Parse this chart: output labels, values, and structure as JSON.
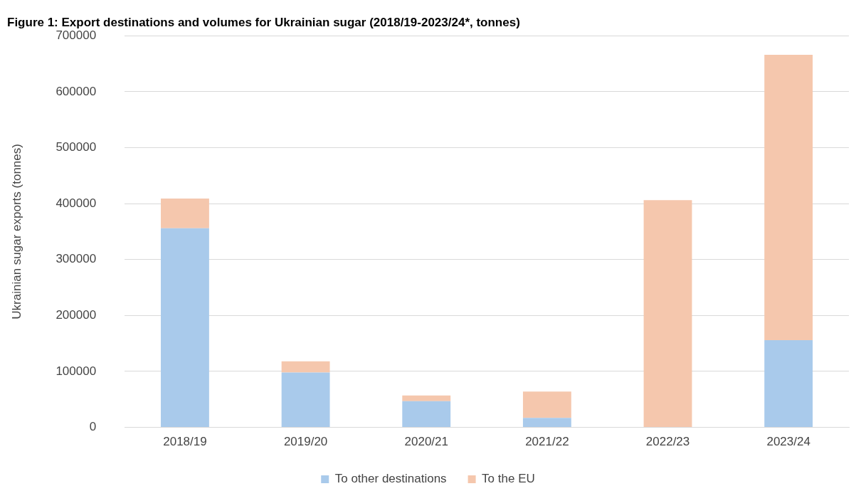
{
  "chart_data": {
    "type": "bar",
    "title": "Figure 1: Export destinations and volumes for Ukrainian sugar (2018/19-2023/24*, tonnes)",
    "ylabel": "Ukrainian sugar exports (tonnes)",
    "categories": [
      "2018/19",
      "2019/20",
      "2020/21",
      "2021/22",
      "2022/23",
      "2023/24"
    ],
    "stacked": true,
    "series": [
      {
        "name": "To other destinations",
        "color": "#a9caeb",
        "values": [
          356000,
          98000,
          47000,
          17000,
          0,
          156000
        ]
      },
      {
        "name": "To the EU",
        "color": "#f5c7ad",
        "values": [
          53000,
          20000,
          10000,
          47000,
          406000,
          510000
        ]
      }
    ],
    "ylim": [
      0,
      700000
    ],
    "yticks": [
      0,
      100000,
      200000,
      300000,
      400000,
      500000,
      600000,
      700000
    ],
    "grid": "y",
    "legend": "bottom"
  }
}
